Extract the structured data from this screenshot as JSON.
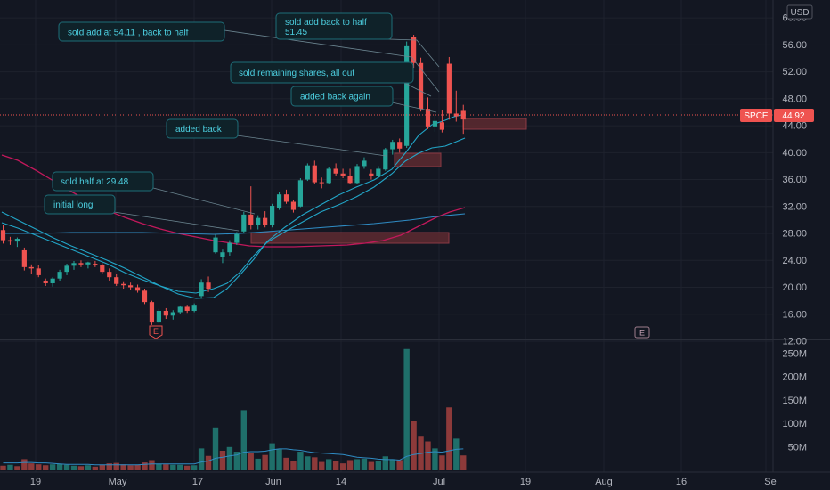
{
  "ticker": "SPCE",
  "currency": "USD",
  "last_price": "44.92",
  "colors": {
    "background": "#131722",
    "up": "#26a69a",
    "down": "#ef5350",
    "annotation_bg": "#0f2229",
    "annotation_border": "#1e6d78",
    "annotation_text": "#4dd0e1",
    "ma_fast": "#22a6c8",
    "ma_slow": "#c2185b",
    "ma_mid": "#2f8cc4",
    "zone": "#5e2a30",
    "axis_text": "#b2b5be"
  },
  "price_axis": {
    "min": 12,
    "max": 62,
    "ticks": [
      "60.00",
      "56.00",
      "52.00",
      "48.00",
      "44.00",
      "40.00",
      "36.00",
      "32.00",
      "28.00",
      "24.00",
      "20.00",
      "16.00",
      "12.00"
    ]
  },
  "volume_axis": {
    "ticks": [
      "250M",
      "200M",
      "150M",
      "100M",
      "50M"
    ]
  },
  "time_axis": {
    "labels": [
      "19",
      "May",
      "17",
      "Jun",
      "14",
      "Jul",
      "19",
      "Aug",
      "16",
      "Se"
    ]
  },
  "earnings_markers": [
    "E",
    "E"
  ],
  "annotations": [
    {
      "text": "sold add at 54.11 , back to half"
    },
    {
      "text": "sold add back to half\n51.45"
    },
    {
      "text": "sold remaining shares, all out"
    },
    {
      "text": "added back again"
    },
    {
      "text": "added back"
    },
    {
      "text": "sold half at 29.48"
    },
    {
      "text": "initial long"
    }
  ],
  "chart_data": {
    "type": "candlestick",
    "ohlc": [
      [
        28.5,
        29.2,
        26.5,
        27.0
      ],
      [
        27.0,
        27.5,
        26.3,
        26.8
      ],
      [
        26.8,
        27.4,
        26.0,
        27.2
      ],
      [
        25.5,
        25.9,
        22.5,
        23.0
      ],
      [
        23.0,
        23.4,
        22.0,
        22.8
      ],
      [
        22.8,
        23.3,
        21.5,
        21.8
      ],
      [
        21.0,
        21.3,
        20.2,
        20.6
      ],
      [
        20.6,
        21.5,
        20.1,
        21.3
      ],
      [
        21.3,
        22.6,
        21.0,
        22.3
      ],
      [
        22.3,
        23.5,
        21.8,
        23.2
      ],
      [
        23.2,
        23.9,
        22.6,
        23.6
      ],
      [
        23.6,
        24.0,
        23.0,
        23.4
      ],
      [
        23.4,
        23.8,
        22.8,
        23.7
      ],
      [
        23.5,
        23.9,
        23.0,
        23.3
      ],
      [
        23.3,
        23.6,
        22.0,
        22.3
      ],
      [
        22.3,
        22.8,
        21.0,
        21.5
      ],
      [
        21.5,
        22.0,
        20.2,
        20.5
      ],
      [
        20.5,
        20.9,
        19.8,
        20.3
      ],
      [
        20.3,
        20.7,
        19.6,
        20.0
      ],
      [
        20.0,
        20.4,
        19.2,
        19.5
      ],
      [
        19.5,
        19.8,
        17.5,
        17.8
      ],
      [
        17.8,
        18.0,
        14.4,
        14.9
      ],
      [
        14.9,
        16.8,
        14.7,
        16.5
      ],
      [
        16.5,
        16.9,
        15.3,
        15.8
      ],
      [
        15.8,
        16.6,
        15.2,
        16.3
      ],
      [
        16.3,
        17.3,
        16.0,
        17.1
      ],
      [
        17.1,
        17.4,
        16.2,
        16.5
      ],
      [
        16.5,
        17.6,
        16.3,
        17.4
      ],
      [
        18.7,
        21.2,
        18.3,
        20.7
      ],
      [
        20.7,
        21.6,
        19.3,
        19.8
      ],
      [
        25.2,
        27.8,
        25.0,
        27.4
      ],
      [
        24.5,
        25.6,
        23.6,
        25.2
      ],
      [
        25.2,
        27.0,
        24.7,
        26.6
      ],
      [
        26.6,
        28.2,
        26.3,
        27.9
      ],
      [
        28.3,
        31.2,
        28.1,
        30.8
      ],
      [
        30.8,
        35.0,
        28.6,
        29.2
      ],
      [
        29.2,
        30.7,
        28.6,
        30.3
      ],
      [
        30.3,
        31.3,
        28.9,
        29.2
      ],
      [
        29.2,
        32.4,
        28.9,
        32.1
      ],
      [
        31.8,
        34.2,
        31.5,
        33.8
      ],
      [
        33.8,
        34.5,
        32.4,
        32.7
      ],
      [
        32.7,
        33.0,
        31.1,
        31.5
      ],
      [
        32.0,
        36.2,
        31.9,
        35.9
      ],
      [
        36.0,
        38.4,
        35.8,
        38.1
      ],
      [
        38.1,
        38.8,
        35.4,
        35.6
      ],
      [
        35.6,
        36.3,
        34.7,
        35.5
      ],
      [
        35.5,
        37.8,
        35.3,
        37.6
      ],
      [
        37.6,
        38.4,
        36.5,
        36.9
      ],
      [
        36.9,
        37.6,
        36.2,
        36.6
      ],
      [
        36.6,
        37.6,
        35.3,
        35.5
      ],
      [
        35.5,
        38.3,
        35.4,
        38.0
      ],
      [
        38.0,
        39.3,
        37.6,
        38.8
      ],
      [
        36.9,
        37.5,
        36.0,
        36.5
      ],
      [
        36.5,
        38.0,
        36.2,
        37.6
      ],
      [
        37.5,
        40.7,
        37.3,
        40.5
      ],
      [
        40.5,
        41.9,
        39.7,
        41.6
      ],
      [
        41.6,
        42.1,
        40.0,
        40.6
      ],
      [
        41.0,
        56.5,
        40.7,
        55.8
      ],
      [
        57.2,
        57.5,
        52.6,
        53.3
      ],
      [
        53.3,
        54.1,
        46.1,
        46.5
      ],
      [
        46.5,
        48.2,
        43.5,
        43.9
      ],
      [
        43.9,
        45.5,
        43.1,
        44.7
      ],
      [
        44.5,
        46.3,
        43.0,
        43.4
      ],
      [
        53.2,
        54.2,
        44.9,
        45.8
      ],
      [
        45.8,
        49.2,
        44.6,
        45.4
      ],
      [
        46.2,
        47.1,
        42.8,
        44.92
      ]
    ],
    "volume_millions": [
      [
        10,
        "down"
      ],
      [
        12,
        "up"
      ],
      [
        9,
        "down"
      ],
      [
        24,
        "down"
      ],
      [
        15,
        "down"
      ],
      [
        13,
        "down"
      ],
      [
        11,
        "down"
      ],
      [
        13,
        "up"
      ],
      [
        14,
        "up"
      ],
      [
        12,
        "up"
      ],
      [
        10,
        "up"
      ],
      [
        9,
        "down"
      ],
      [
        11,
        "up"
      ],
      [
        8,
        "down"
      ],
      [
        12,
        "down"
      ],
      [
        15,
        "down"
      ],
      [
        16,
        "down"
      ],
      [
        13,
        "down"
      ],
      [
        11,
        "down"
      ],
      [
        12,
        "down"
      ],
      [
        17,
        "down"
      ],
      [
        22,
        "down"
      ],
      [
        14,
        "up"
      ],
      [
        13,
        "down"
      ],
      [
        12,
        "up"
      ],
      [
        12,
        "up"
      ],
      [
        10,
        "down"
      ],
      [
        11,
        "up"
      ],
      [
        47,
        "up"
      ],
      [
        31,
        "down"
      ],
      [
        92,
        "up"
      ],
      [
        42,
        "down"
      ],
      [
        50,
        "up"
      ],
      [
        40,
        "up"
      ],
      [
        129,
        "up"
      ],
      [
        38,
        "down"
      ],
      [
        25,
        "up"
      ],
      [
        33,
        "down"
      ],
      [
        58,
        "up"
      ],
      [
        45,
        "up"
      ],
      [
        27,
        "down"
      ],
      [
        20,
        "down"
      ],
      [
        40,
        "up"
      ],
      [
        30,
        "up"
      ],
      [
        28,
        "down"
      ],
      [
        18,
        "down"
      ],
      [
        24,
        "up"
      ],
      [
        20,
        "down"
      ],
      [
        15,
        "down"
      ],
      [
        22,
        "down"
      ],
      [
        24,
        "up"
      ],
      [
        25,
        "up"
      ],
      [
        18,
        "down"
      ],
      [
        20,
        "up"
      ],
      [
        30,
        "up"
      ],
      [
        24,
        "up"
      ],
      [
        22,
        "down"
      ],
      [
        260,
        "up"
      ],
      [
        106,
        "down"
      ],
      [
        74,
        "down"
      ],
      [
        62,
        "down"
      ],
      [
        47,
        "up"
      ],
      [
        32,
        "down"
      ],
      [
        135,
        "down"
      ],
      [
        68,
        "up"
      ],
      [
        32,
        "down"
      ]
    ],
    "volume_ma_millions": [
      16,
      16,
      16,
      17,
      17,
      16,
      16,
      15,
      14,
      13,
      13,
      13,
      13,
      12,
      12,
      12,
      12,
      12,
      12,
      12,
      13,
      14,
      14,
      14,
      14,
      14,
      14,
      14,
      18,
      20,
      26,
      28,
      31,
      33,
      39,
      40,
      40,
      41,
      44,
      46,
      46,
      44,
      43,
      40,
      38,
      37,
      36,
      35,
      34,
      31,
      28,
      27,
      26,
      24,
      23,
      23,
      22,
      30,
      34,
      36,
      39,
      40,
      39,
      42,
      45,
      46
    ]
  }
}
